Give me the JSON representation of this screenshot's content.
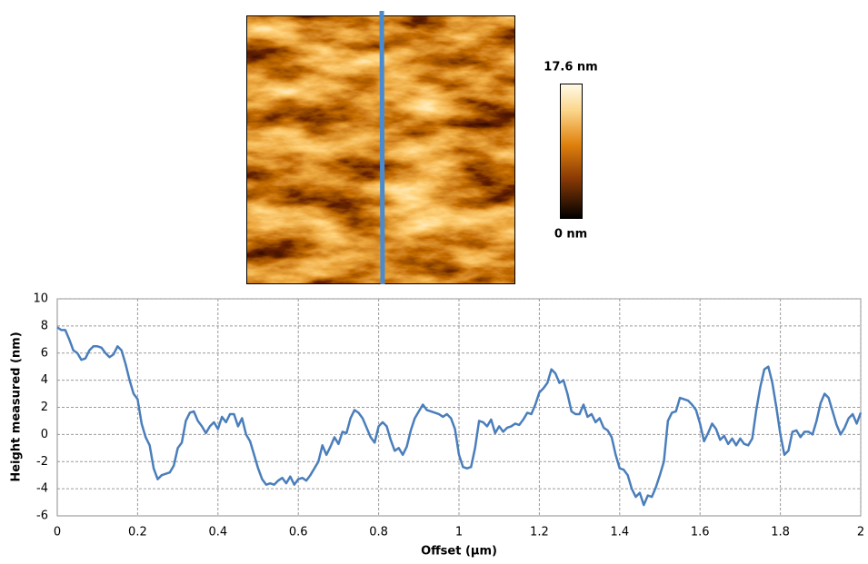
{
  "image": {
    "colorbar_max_label": "17.6 nm",
    "colorbar_min_label": "0 nm"
  },
  "chart_data": {
    "type": "line",
    "x_label": "Offset (µm)",
    "y_label": "Height measured (nm)",
    "color": "#4a7ebb",
    "grid": true,
    "xlim": [
      0,
      2
    ],
    "xticks": [
      0,
      0.2,
      0.4,
      0.6,
      0.8,
      1,
      1.2,
      1.4,
      1.6,
      1.8,
      2
    ],
    "ylim": [
      -6,
      10
    ],
    "yticks": [
      -6,
      -4,
      -2,
      0,
      2,
      4,
      6,
      8,
      10
    ],
    "x": [
      0,
      0.01,
      0.02,
      0.03,
      0.04,
      0.05,
      0.06,
      0.07,
      0.08,
      0.09,
      0.1,
      0.11,
      0.12,
      0.13,
      0.14,
      0.15,
      0.16,
      0.17,
      0.18,
      0.19,
      0.2,
      0.21,
      0.22,
      0.23,
      0.24,
      0.25,
      0.26,
      0.27,
      0.28,
      0.29,
      0.3,
      0.31,
      0.32,
      0.33,
      0.34,
      0.35,
      0.36,
      0.37,
      0.38,
      0.39,
      0.4,
      0.41,
      0.42,
      0.43,
      0.44,
      0.45,
      0.46,
      0.47,
      0.48,
      0.49,
      0.5,
      0.51,
      0.52,
      0.53,
      0.54,
      0.55,
      0.56,
      0.57,
      0.58,
      0.59,
      0.6,
      0.61,
      0.62,
      0.63,
      0.64,
      0.65,
      0.66,
      0.67,
      0.68,
      0.69,
      0.7,
      0.71,
      0.72,
      0.73,
      0.74,
      0.75,
      0.76,
      0.77,
      0.78,
      0.79,
      0.8,
      0.81,
      0.82,
      0.83,
      0.84,
      0.85,
      0.86,
      0.87,
      0.88,
      0.89,
      0.9,
      0.91,
      0.92,
      0.93,
      0.94,
      0.95,
      0.96,
      0.97,
      0.98,
      0.99,
      1,
      1.01,
      1.02,
      1.03,
      1.04,
      1.05,
      1.06,
      1.07,
      1.08,
      1.09,
      1.1,
      1.11,
      1.12,
      1.13,
      1.14,
      1.15,
      1.16,
      1.17,
      1.18,
      1.19,
      1.2,
      1.21,
      1.22,
      1.23,
      1.24,
      1.25,
      1.26,
      1.27,
      1.28,
      1.29,
      1.3,
      1.31,
      1.32,
      1.33,
      1.34,
      1.35,
      1.36,
      1.37,
      1.38,
      1.39,
      1.4,
      1.41,
      1.42,
      1.43,
      1.44,
      1.45,
      1.46,
      1.47,
      1.48,
      1.49,
      1.5,
      1.51,
      1.52,
      1.53,
      1.54,
      1.55,
      1.56,
      1.57,
      1.58,
      1.59,
      1.6,
      1.61,
      1.62,
      1.63,
      1.64,
      1.65,
      1.66,
      1.67,
      1.68,
      1.69,
      1.7,
      1.71,
      1.72,
      1.73,
      1.74,
      1.75,
      1.76,
      1.77,
      1.78,
      1.79,
      1.8,
      1.81,
      1.82,
      1.83,
      1.84,
      1.85,
      1.86,
      1.87,
      1.88,
      1.89,
      1.9,
      1.91,
      1.92,
      1.93,
      1.94,
      1.95,
      1.96,
      1.97,
      1.98,
      1.99,
      2
    ],
    "values": [
      7.9,
      7.7,
      7.7,
      7.0,
      6.2,
      6.0,
      5.5,
      5.6,
      6.2,
      6.5,
      6.5,
      6.4,
      6.0,
      5.7,
      5.9,
      6.5,
      6.2,
      5.2,
      4.0,
      3.0,
      2.6,
      0.8,
      -0.2,
      -0.8,
      -2.5,
      -3.3,
      -3.0,
      -2.9,
      -2.8,
      -2.3,
      -1.0,
      -0.6,
      1.0,
      1.6,
      1.7,
      1.0,
      0.6,
      0.1,
      0.6,
      0.9,
      0.4,
      1.3,
      0.9,
      1.5,
      1.5,
      0.6,
      1.2,
      0.0,
      -0.5,
      -1.5,
      -2.5,
      -3.3,
      -3.7,
      -3.6,
      -3.7,
      -3.4,
      -3.2,
      -3.6,
      -3.1,
      -3.7,
      -3.3,
      -3.2,
      -3.4,
      -3.0,
      -2.5,
      -2.0,
      -0.8,
      -1.5,
      -0.9,
      -0.2,
      -0.7,
      0.2,
      0.1,
      1.2,
      1.8,
      1.6,
      1.2,
      0.5,
      -0.2,
      -0.6,
      0.6,
      0.9,
      0.6,
      -0.4,
      -1.2,
      -1.0,
      -1.5,
      -0.9,
      0.3,
      1.2,
      1.7,
      2.2,
      1.8,
      1.7,
      1.6,
      1.5,
      1.3,
      1.5,
      1.2,
      0.4,
      -1.5,
      -2.4,
      -2.5,
      -2.4,
      -1.0,
      1.0,
      0.9,
      0.6,
      1.1,
      0.1,
      0.6,
      0.2,
      0.5,
      0.6,
      0.8,
      0.7,
      1.1,
      1.6,
      1.5,
      2.2,
      3.1,
      3.4,
      3.8,
      4.8,
      4.5,
      3.8,
      4.0,
      3.0,
      1.7,
      1.5,
      1.5,
      2.2,
      1.3,
      1.5,
      0.9,
      1.2,
      0.5,
      0.3,
      -0.2,
      -1.5,
      -2.5,
      -2.6,
      -3.0,
      -4.0,
      -4.6,
      -4.3,
      -5.2,
      -4.5,
      -4.6,
      -3.9,
      -3.0,
      -2.0,
      1.0,
      1.6,
      1.7,
      2.7,
      2.6,
      2.5,
      2.2,
      1.8,
      0.8,
      -0.5,
      0.1,
      0.8,
      0.4,
      -0.4,
      -0.1,
      -0.7,
      -0.3,
      -0.8,
      -0.3,
      -0.7,
      -0.8,
      -0.3,
      1.8,
      3.5,
      4.8,
      5.0,
      3.8,
      2.0,
      0.0,
      -1.5,
      -1.2,
      0.2,
      0.3,
      -0.2,
      0.2,
      0.2,
      0.0,
      1.0,
      2.3,
      3.0,
      2.7,
      1.7,
      0.7,
      0.0,
      0.5,
      1.2,
      1.5,
      0.8,
      1.6
    ]
  }
}
